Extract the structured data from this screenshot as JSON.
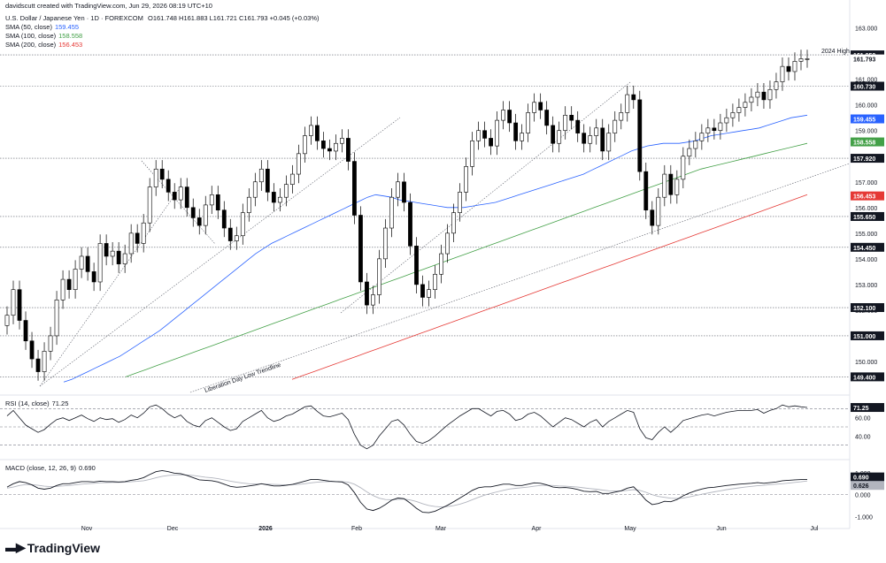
{
  "header": {
    "created_by": "davidscutt created with TradingView.com, Jun 29, 2026 08:19 UTC+10",
    "symbol": "U.S. Dollar / Japanese Yen · 1D · FOREXCOM",
    "ohlc": "O161.748  H161.883  L161.721  C161.793  +0.045 (+0.03%)",
    "sma50": {
      "label": "SMA (50, close)",
      "value": "159.455",
      "color": "#2962ff"
    },
    "sma100": {
      "label": "SMA (100, close)",
      "value": "158.558",
      "color": "#43a047"
    },
    "sma200": {
      "label": "SMA (200, close)",
      "value": "156.453",
      "color": "#e53935"
    }
  },
  "brand": {
    "name": "TradingView"
  },
  "colors": {
    "candle_up": "#ffffff",
    "candle_down": "#000000",
    "rsi": "#131722",
    "macd": "#131722",
    "signal": "#b2b5be"
  },
  "annotations": {
    "high_label": "2024 High",
    "trendline_label": "Liberation Day Low Trendline"
  },
  "chart_data": [
    {
      "type": "candlestick",
      "title": "",
      "ylim": [
        149.0,
        163.4
      ],
      "y_ticks": [
        "163.000",
        "162.000",
        "161.000",
        "160.000",
        "159.000",
        "158.000",
        "157.000",
        "156.000",
        "155.000",
        "154.000",
        "153.000",
        "152.000",
        "151.000",
        "150.000"
      ],
      "x_ticks": [
        "Nov",
        "Dec",
        "2026",
        "Feb",
        "Mar",
        "Apr",
        "May",
        "Jun",
        "Jul"
      ],
      "price_levels": [
        {
          "value": 161.95,
          "label": "161.950",
          "style": "dark"
        },
        {
          "value": 161.793,
          "label": "161.793",
          "style": "plain"
        },
        {
          "value": 160.73,
          "label": "160.730",
          "style": "dark"
        },
        {
          "value": 159.455,
          "label": "159.455",
          "style": "blue"
        },
        {
          "value": 158.558,
          "label": "158.558",
          "style": "green"
        },
        {
          "value": 157.92,
          "label": "157.920",
          "style": "dark"
        },
        {
          "value": 156.453,
          "label": "156.453",
          "style": "red"
        },
        {
          "value": 155.65,
          "label": "155.650",
          "style": "dark"
        },
        {
          "value": 154.45,
          "label": "154.450",
          "style": "dark"
        },
        {
          "value": 152.1,
          "label": "152.100",
          "style": "dark"
        },
        {
          "value": 151.0,
          "label": "151.000",
          "style": "dark"
        },
        {
          "value": 149.4,
          "label": "149.400",
          "style": "dark"
        }
      ],
      "close_series": [
        151.8,
        152.8,
        151.6,
        150.8,
        150.1,
        149.6,
        150.4,
        151.0,
        152.4,
        153.2,
        152.8,
        153.6,
        154.1,
        153.5,
        153.1,
        154.6,
        154.1,
        154.3,
        153.8,
        154.2,
        155.0,
        154.6,
        155.4,
        156.8,
        157.5,
        157.1,
        156.6,
        156.3,
        156.8,
        156.0,
        155.6,
        155.3,
        156.1,
        156.5,
        155.9,
        155.2,
        154.7,
        154.9,
        155.8,
        156.4,
        157.0,
        157.5,
        156.6,
        156.2,
        156.4,
        156.9,
        157.3,
        158.1,
        158.8,
        159.2,
        158.6,
        158.3,
        158.2,
        158.5,
        158.7,
        157.8,
        155.7,
        153.1,
        152.2,
        152.6,
        154.0,
        155.2,
        156.4,
        157.0,
        156.2,
        154.5,
        153.0,
        152.5,
        152.8,
        153.4,
        154.2,
        155.0,
        155.8,
        156.6,
        157.6,
        158.6,
        159.0,
        158.7,
        158.4,
        159.4,
        159.8,
        159.3,
        158.6,
        158.9,
        159.7,
        160.1,
        159.8,
        159.2,
        158.5,
        159.0,
        159.6,
        159.4,
        158.9,
        158.5,
        158.8,
        159.1,
        158.2,
        158.9,
        159.4,
        159.7,
        160.4,
        160.2,
        157.4,
        155.9,
        155.3,
        156.4,
        157.3,
        156.5,
        157.1,
        158.0,
        158.3,
        158.6,
        158.9,
        159.1,
        159.0,
        159.3,
        159.5,
        159.7,
        159.9,
        160.1,
        160.3,
        160.5,
        160.2,
        160.6,
        160.9,
        161.5,
        161.3,
        161.7,
        161.8,
        161.8
      ],
      "sma50": [
        149.2,
        149.3,
        149.45,
        149.6,
        149.75,
        149.9,
        150.05,
        150.2,
        150.4,
        150.6,
        150.8,
        151.0,
        151.2,
        151.45,
        151.7,
        151.95,
        152.2,
        152.45,
        152.7,
        152.95,
        153.2,
        153.45,
        153.7,
        153.95,
        154.2,
        154.4,
        154.6,
        154.75,
        154.9,
        155.05,
        155.2,
        155.35,
        155.5,
        155.65,
        155.8,
        155.95,
        156.1,
        156.25,
        156.4,
        156.5,
        156.45,
        156.4,
        156.3,
        156.25,
        156.2,
        156.15,
        156.1,
        156.05,
        156.0,
        156.0,
        156.0,
        156.05,
        156.1,
        156.15,
        156.2,
        156.3,
        156.4,
        156.5,
        156.6,
        156.7,
        156.8,
        156.9,
        157.0,
        157.1,
        157.2,
        157.3,
        157.45,
        157.6,
        157.75,
        157.9,
        158.05,
        158.2,
        158.3,
        158.4,
        158.45,
        158.5,
        158.5,
        158.5,
        158.55,
        158.6,
        158.7,
        158.8,
        158.85,
        158.9,
        158.95,
        159.0,
        159.05,
        159.1,
        159.2,
        159.3,
        159.4,
        159.5,
        159.55,
        159.6
      ],
      "sma100": [
        149.4,
        149.55,
        149.7,
        149.85,
        150.0,
        150.15,
        150.3,
        150.45,
        150.6,
        150.75,
        150.9,
        151.05,
        151.2,
        151.35,
        151.5,
        151.65,
        151.8,
        151.95,
        152.1,
        152.25,
        152.4,
        152.55,
        152.7,
        152.85,
        153.0,
        153.15,
        153.3,
        153.45,
        153.6,
        153.75,
        153.9,
        154.05,
        154.2,
        154.35,
        154.5,
        154.65,
        154.8,
        154.95,
        155.1,
        155.25,
        155.4,
        155.55,
        155.7,
        155.85,
        156.0,
        156.15,
        156.3,
        156.45,
        156.6,
        156.75,
        156.9,
        157.05,
        157.2,
        157.35,
        157.5,
        157.6,
        157.7,
        157.8,
        157.9,
        158.0,
        158.1,
        158.2,
        158.3,
        158.4,
        158.5
      ],
      "sma200": [
        149.3,
        149.45,
        149.6,
        149.75,
        149.9,
        150.05,
        150.2,
        150.35,
        150.5,
        150.65,
        150.8,
        150.95,
        151.1,
        151.25,
        151.4,
        151.55,
        151.7,
        151.85,
        152.0,
        152.15,
        152.3,
        152.45,
        152.6,
        152.75,
        152.9,
        153.05,
        153.2,
        153.35,
        153.5,
        153.65,
        153.8,
        153.95,
        154.1,
        154.25,
        154.4,
        154.55,
        154.7,
        154.85,
        155.0,
        155.15,
        155.3,
        155.45,
        155.6,
        155.75,
        155.9,
        156.05,
        156.2,
        156.35,
        156.5
      ]
    },
    {
      "type": "line",
      "title": "RSI (14, close)",
      "value_label": "71.25",
      "ylim": [
        20,
        80
      ],
      "y_ticks": [
        "60.00",
        "40.00"
      ],
      "levels": [
        70,
        50,
        30
      ],
      "values": [
        62,
        68,
        60,
        52,
        48,
        44,
        47,
        53,
        58,
        60,
        57,
        60,
        63,
        59,
        56,
        60,
        58,
        59,
        55,
        58,
        63,
        60,
        65,
        72,
        74,
        70,
        64,
        60,
        63,
        56,
        52,
        50,
        57,
        60,
        55,
        50,
        46,
        48,
        56,
        60,
        64,
        68,
        60,
        56,
        58,
        62,
        64,
        68,
        72,
        73,
        67,
        62,
        61,
        63,
        65,
        58,
        42,
        30,
        26,
        30,
        40,
        48,
        56,
        58,
        52,
        42,
        34,
        32,
        35,
        40,
        46,
        52,
        57,
        62,
        66,
        70,
        70,
        66,
        62,
        67,
        68,
        64,
        57,
        59,
        64,
        66,
        62,
        56,
        50,
        55,
        60,
        58,
        54,
        50,
        55,
        58,
        50,
        56,
        60,
        64,
        68,
        66,
        48,
        38,
        36,
        44,
        50,
        44,
        50,
        57,
        59,
        61,
        63,
        64,
        62,
        64,
        66,
        67,
        68,
        68,
        68,
        69,
        65,
        68,
        70,
        74,
        72,
        73,
        72,
        71.25
      ]
    },
    {
      "type": "line",
      "title": "MACD (close, 12, 26, 9)",
      "value_label": "0.690",
      "signal_label": "0.626",
      "ylim": [
        -1.3,
        1.4
      ],
      "y_ticks": [
        "1.000",
        "0.000",
        "-1.000"
      ],
      "macd": [
        0.35,
        0.5,
        0.6,
        0.55,
        0.45,
        0.3,
        0.25,
        0.3,
        0.42,
        0.5,
        0.5,
        0.55,
        0.6,
        0.6,
        0.58,
        0.62,
        0.6,
        0.6,
        0.58,
        0.6,
        0.66,
        0.7,
        0.78,
        0.92,
        1.05,
        1.1,
        1.05,
        0.98,
        0.96,
        0.88,
        0.78,
        0.68,
        0.66,
        0.64,
        0.58,
        0.48,
        0.38,
        0.34,
        0.36,
        0.4,
        0.44,
        0.5,
        0.45,
        0.4,
        0.4,
        0.43,
        0.47,
        0.54,
        0.62,
        0.7,
        0.7,
        0.66,
        0.62,
        0.6,
        0.58,
        0.45,
        0.1,
        -0.35,
        -0.65,
        -0.72,
        -0.62,
        -0.45,
        -0.25,
        -0.15,
        -0.18,
        -0.38,
        -0.62,
        -0.8,
        -0.82,
        -0.75,
        -0.62,
        -0.48,
        -0.32,
        -0.15,
        0.02,
        0.2,
        0.32,
        0.36,
        0.36,
        0.42,
        0.48,
        0.48,
        0.42,
        0.42,
        0.48,
        0.54,
        0.52,
        0.45,
        0.35,
        0.32,
        0.33,
        0.3,
        0.24,
        0.16,
        0.14,
        0.15,
        0.06,
        0.06,
        0.12,
        0.18,
        0.3,
        0.36,
        0.08,
        -0.25,
        -0.45,
        -0.4,
        -0.3,
        -0.32,
        -0.22,
        -0.05,
        0.08,
        0.18,
        0.26,
        0.32,
        0.34,
        0.38,
        0.42,
        0.45,
        0.48,
        0.5,
        0.52,
        0.55,
        0.52,
        0.55,
        0.58,
        0.64,
        0.66,
        0.68,
        0.69,
        0.69
      ],
      "signal": [
        0.3,
        0.35,
        0.42,
        0.46,
        0.46,
        0.43,
        0.39,
        0.37,
        0.38,
        0.4,
        0.42,
        0.45,
        0.48,
        0.5,
        0.52,
        0.54,
        0.55,
        0.56,
        0.56,
        0.57,
        0.59,
        0.61,
        0.64,
        0.7,
        0.77,
        0.84,
        0.88,
        0.9,
        0.91,
        0.9,
        0.88,
        0.84,
        0.8,
        0.77,
        0.73,
        0.68,
        0.62,
        0.57,
        0.53,
        0.5,
        0.49,
        0.49,
        0.48,
        0.47,
        0.46,
        0.45,
        0.46,
        0.47,
        0.5,
        0.54,
        0.57,
        0.59,
        0.6,
        0.6,
        0.6,
        0.57,
        0.48,
        0.32,
        0.13,
        -0.04,
        -0.16,
        -0.22,
        -0.23,
        -0.21,
        -0.2,
        -0.24,
        -0.31,
        -0.41,
        -0.49,
        -0.54,
        -0.56,
        -0.54,
        -0.5,
        -0.43,
        -0.34,
        -0.23,
        -0.12,
        -0.02,
        0.06,
        0.13,
        0.2,
        0.26,
        0.29,
        0.32,
        0.35,
        0.39,
        0.42,
        0.43,
        0.42,
        0.4,
        0.39,
        0.37,
        0.35,
        0.31,
        0.28,
        0.25,
        0.21,
        0.18,
        0.17,
        0.17,
        0.2,
        0.23,
        0.2,
        0.11,
        0.0,
        -0.08,
        -0.12,
        -0.16,
        -0.17,
        -0.15,
        -0.1,
        -0.04,
        0.02,
        0.08,
        0.13,
        0.18,
        0.23,
        0.27,
        0.31,
        0.35,
        0.38,
        0.41,
        0.43,
        0.46,
        0.48,
        0.5,
        0.53,
        0.56,
        0.59,
        0.626
      ]
    }
  ]
}
